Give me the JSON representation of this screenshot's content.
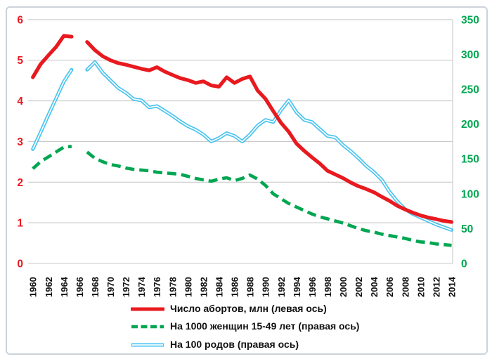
{
  "figure": {
    "background_color": "#ffffff",
    "border_color": "#ccd3d9",
    "grid_color": "#c9c9c9",
    "text_color": "#111111"
  },
  "chart_data": {
    "type": "line",
    "title": "",
    "xlabel": "",
    "ylabel_left": "",
    "ylabel_right": "",
    "grid": true,
    "legend_position": "bottom",
    "x": [
      1960,
      1961,
      1962,
      1963,
      1964,
      1965,
      1966,
      1967,
      1968,
      1969,
      1970,
      1971,
      1972,
      1973,
      1974,
      1975,
      1976,
      1977,
      1978,
      1979,
      1980,
      1981,
      1982,
      1983,
      1984,
      1985,
      1986,
      1987,
      1988,
      1989,
      1990,
      1991,
      1992,
      1993,
      1994,
      1995,
      1996,
      1997,
      1998,
      1999,
      2000,
      2001,
      2002,
      2003,
      2004,
      2005,
      2006,
      2007,
      2008,
      2009,
      2010,
      2011,
      2012,
      2013,
      2014
    ],
    "x_tick_labels": [
      "1960",
      "1962",
      "1964",
      "1966",
      "1968",
      "1970",
      "1972",
      "1974",
      "1976",
      "1978",
      "1980",
      "1982",
      "1984",
      "1986",
      "1988",
      "1990",
      "1992",
      "1994",
      "1996",
      "1998",
      "2000",
      "2002",
      "2004",
      "2006",
      "2008",
      "2010",
      "2012",
      "2014"
    ],
    "left_axis": {
      "color": "#e8191f",
      "ticks": [
        0,
        1,
        2,
        3,
        4,
        5,
        6
      ],
      "range": [
        0,
        6
      ]
    },
    "right_axis": {
      "color": "#00a651",
      "ticks": [
        0,
        50,
        100,
        150,
        200,
        250,
        300,
        350
      ],
      "range": [
        0,
        350
      ]
    },
    "note": "no data for 1966 (gap in all series)",
    "series": [
      {
        "name": "abortions-mln",
        "label": "Число абортов, млн (левая ось)",
        "axis": "left",
        "color": "#e8191f",
        "style": "solid-thick",
        "values": [
          4.58,
          4.9,
          5.12,
          5.33,
          5.6,
          5.58,
          null,
          5.45,
          5.25,
          5.1,
          5.0,
          4.93,
          4.89,
          4.84,
          4.79,
          4.75,
          4.83,
          4.72,
          4.64,
          4.56,
          4.51,
          4.44,
          4.48,
          4.38,
          4.35,
          4.58,
          4.44,
          4.54,
          4.6,
          4.25,
          4.05,
          3.75,
          3.46,
          3.24,
          2.95,
          2.77,
          2.61,
          2.46,
          2.28,
          2.19,
          2.1,
          1.99,
          1.9,
          1.83,
          1.75,
          1.64,
          1.54,
          1.42,
          1.33,
          1.25,
          1.18,
          1.13,
          1.09,
          1.05,
          1.02
        ]
      },
      {
        "name": "per-1000-women",
        "label": "На 1000 женщин 15-49 лет (правая ось)",
        "axis": "right",
        "color": "#00a651",
        "style": "dashed",
        "values": [
          136,
          146,
          153,
          160,
          167,
          168,
          null,
          160,
          151,
          146,
          142,
          140,
          137,
          135,
          134,
          133,
          131,
          130,
          129,
          128,
          125,
          122,
          120,
          118,
          121,
          123,
          119,
          122,
          127,
          121,
          112,
          100,
          93,
          86,
          81,
          76,
          71,
          67,
          64,
          61,
          58,
          54,
          50,
          47,
          45,
          42,
          40,
          38,
          36,
          33,
          31,
          30,
          28,
          27,
          26
        ]
      },
      {
        "name": "per-100-births",
        "label": "На 100 родов (правая ось)",
        "axis": "right",
        "color": "#47c3ef",
        "style": "double-line",
        "values": [
          164,
          188,
          213,
          237,
          261,
          278,
          null,
          278,
          289,
          274,
          263,
          252,
          245,
          236,
          234,
          224,
          226,
          219,
          212,
          204,
          197,
          192,
          185,
          175,
          180,
          187,
          183,
          175,
          185,
          198,
          206,
          203,
          220,
          234,
          217,
          206,
          203,
          193,
          183,
          181,
          170,
          161,
          151,
          140,
          131,
          120,
          103,
          89,
          78,
          71,
          66,
          61,
          56,
          52,
          48
        ]
      }
    ]
  }
}
